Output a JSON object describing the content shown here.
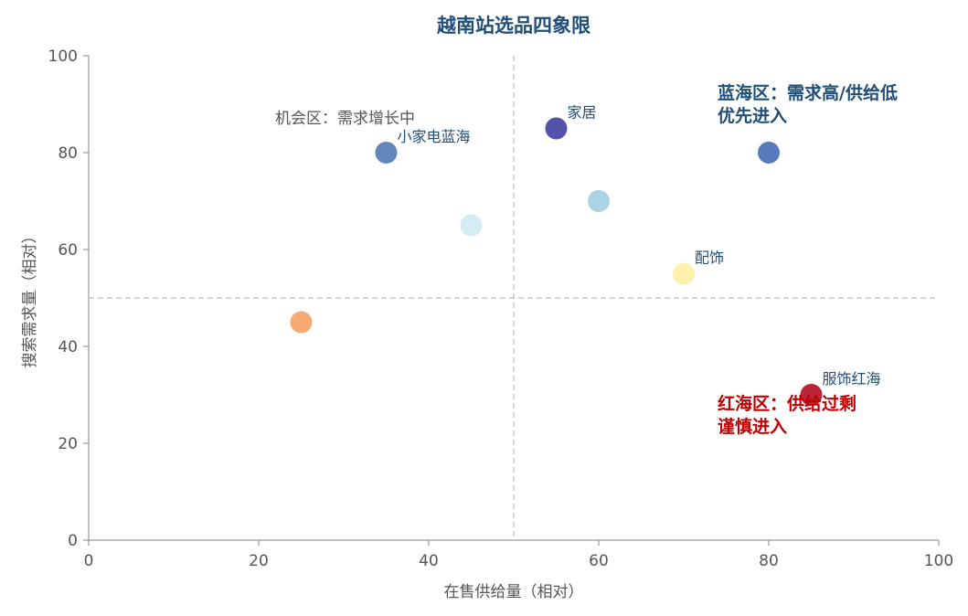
{
  "chart_data": {
    "type": "scatter",
    "title": "越南站选品四象限",
    "xlabel": "在售供给量（相对）",
    "ylabel": "搜索需求量（相对）",
    "xlim": [
      0,
      100
    ],
    "ylim": [
      0,
      100
    ],
    "x_ticks": [
      "0",
      "20",
      "40",
      "60",
      "80",
      "100"
    ],
    "y_ticks": [
      "0",
      "20",
      "40",
      "60",
      "80",
      "100"
    ],
    "reference_lines": {
      "x": 50,
      "y": 50
    },
    "grid": false,
    "points": [
      {
        "x": 35,
        "y": 80,
        "label": "小家电蓝海",
        "color": "#5b7fb9"
      },
      {
        "x": 55,
        "y": 85,
        "label": "家居",
        "color": "#4b4aa6"
      },
      {
        "x": 80,
        "y": 80,
        "label": "",
        "color": "#4d73b8"
      },
      {
        "x": 60,
        "y": 70,
        "label": "",
        "color": "#a7d0e4"
      },
      {
        "x": 45,
        "y": 65,
        "label": "",
        "color": "#d3eaf3"
      },
      {
        "x": 70,
        "y": 55,
        "label": "配饰",
        "color": "#fcefa8"
      },
      {
        "x": 25,
        "y": 45,
        "label": "",
        "color": "#f6a46c"
      },
      {
        "x": 85,
        "y": 30,
        "label": "服饰红海",
        "color": "#b8182e"
      }
    ],
    "annotations": [
      {
        "lines": [
          "蓝海区：需求高/供给低",
          "优先进入"
        ],
        "color": "#1f4e79",
        "bold": true
      },
      {
        "lines": [
          "红海区：供给过剩",
          "谨慎进入"
        ],
        "color": "#c00000",
        "bold": true
      },
      {
        "lines": [
          "机会区：需求增长中"
        ],
        "color": "#555555",
        "bold": false
      }
    ]
  }
}
